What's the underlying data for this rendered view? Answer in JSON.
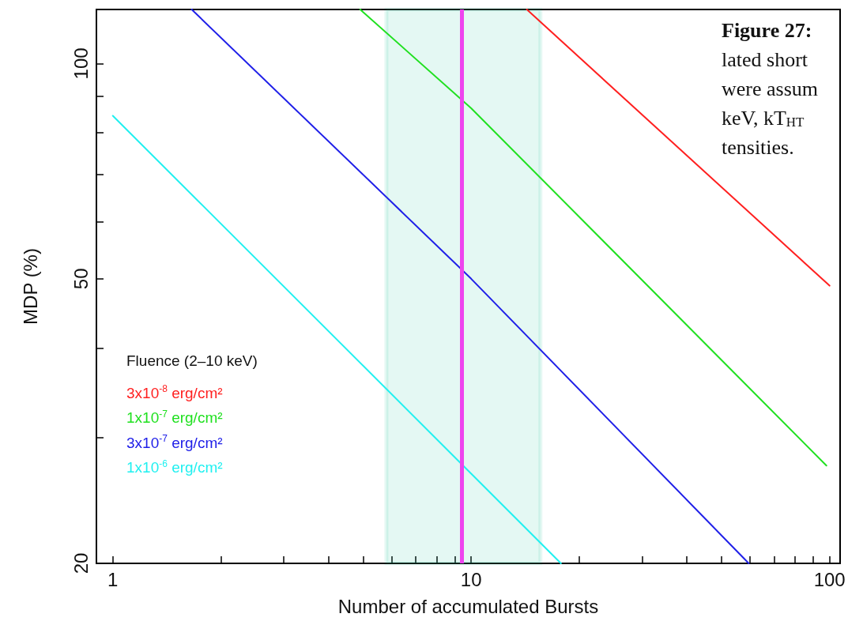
{
  "chart_data": {
    "type": "line",
    "xlabel": "Number of accumulated Bursts",
    "ylabel": "MDP (%)",
    "legend_title": "Fluence (2–10 keV)",
    "log": "xy",
    "xlim": [
      0.9,
      107
    ],
    "ylim": [
      20,
      119
    ],
    "xticks": [
      1,
      {
        "value": 2,
        "label": null
      },
      {
        "value": 3,
        "label": null
      },
      {
        "value": 4,
        "label": null
      },
      {
        "value": 5,
        "label": null
      },
      {
        "value": 6,
        "label": null
      },
      {
        "value": 7,
        "label": null
      },
      {
        "value": 8,
        "label": null
      },
      {
        "value": 9,
        "label": null
      },
      10,
      {
        "value": 20,
        "label": null
      },
      {
        "value": 30,
        "label": null
      },
      {
        "value": 40,
        "label": null
      },
      {
        "value": 50,
        "label": null
      },
      {
        "value": 60,
        "label": null
      },
      {
        "value": 70,
        "label": null
      },
      {
        "value": 80,
        "label": null
      },
      {
        "value": 90,
        "label": null
      },
      100
    ],
    "yticks": [
      20,
      {
        "value": 30,
        "label": null
      },
      {
        "value": 40,
        "label": null
      },
      50,
      {
        "value": 60,
        "label": null
      },
      {
        "value": 70,
        "label": null
      },
      {
        "value": 80,
        "label": null
      },
      {
        "value": 90,
        "label": null
      },
      100
    ],
    "series": [
      {
        "name": "3x10$^{-8}$ erg/cm²",
        "color": "#ff2020",
        "x": [
          14.3,
          100
        ],
        "values": [
          119,
          48.9
        ]
      },
      {
        "name": "1x10$^{-7}$ erg/cm²",
        "color": "#20e020",
        "x": [
          4.9,
          10,
          98
        ],
        "values": [
          119,
          86.6,
          27.4
        ]
      },
      {
        "name": "3x10$^{-7}$ erg/cm²",
        "color": "#2020e8",
        "x": [
          1.66,
          10,
          59.5
        ],
        "values": [
          119,
          50,
          20
        ]
      },
      {
        "name": "1x10$^{-6}$ erg/cm²",
        "color": "#20f0f0",
        "x": [
          1,
          10,
          17.8
        ],
        "values": [
          84.5,
          26.7,
          20
        ]
      }
    ],
    "ref_lines": [
      {
        "axis": "x",
        "value": 9.4,
        "color": "#ee44ee"
      }
    ],
    "bands": [
      {
        "axis": "x",
        "from": 5.8,
        "to": 15.6,
        "color": "#20c8a0"
      }
    ],
    "legend": "bottom left",
    "marker": "none",
    "line_style": "solid",
    "grid": false,
    "annotations": [
      "Figure 27:",
      "lated short",
      "were assum",
      "keV, kT$_{HT}$",
      "tensities."
    ]
  }
}
